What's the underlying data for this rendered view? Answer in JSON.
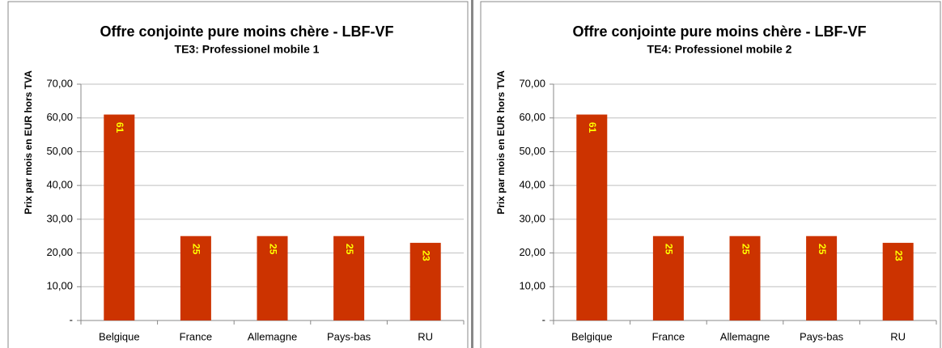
{
  "chart_data": [
    {
      "type": "bar",
      "title": "Offre conjointe pure moins chère - LBF-VF",
      "subtitle": "TE3: Professionel mobile 1",
      "y_label": "Prix par mois en EUR hors TVA",
      "categories": [
        "Belgique",
        "France",
        "Allemagne",
        "Pays-bas",
        "RU"
      ],
      "values": [
        61,
        25,
        25,
        25,
        23
      ],
      "color": "#cc3300",
      "ylim": [
        0,
        70
      ],
      "yticks": [
        {
          "value": 0,
          "label": "-"
        },
        {
          "value": 10,
          "label": "10,00"
        },
        {
          "value": 20,
          "label": "20,00"
        },
        {
          "value": 30,
          "label": "30,00"
        },
        {
          "value": 40,
          "label": "40,00"
        },
        {
          "value": 50,
          "label": "50,00"
        },
        {
          "value": 60,
          "label": "60,00"
        },
        {
          "value": 70,
          "label": "70,00"
        }
      ],
      "grid": true
    },
    {
      "type": "bar",
      "title": "Offre conjointe pure moins chère - LBF-VF",
      "subtitle": "TE4: Professionel mobile 2",
      "y_label": "Prix par mois en EUR hors TVA",
      "categories": [
        "Belgique",
        "France",
        "Allemagne",
        "Pays-bas",
        "RU"
      ],
      "values": [
        61,
        25,
        25,
        25,
        23
      ],
      "color": "#cc3300",
      "ylim": [
        0,
        70
      ],
      "yticks": [
        {
          "value": 0,
          "label": "-"
        },
        {
          "value": 10,
          "label": "10,00"
        },
        {
          "value": 20,
          "label": "20,00"
        },
        {
          "value": 30,
          "label": "30,00"
        },
        {
          "value": 40,
          "label": "40,00"
        },
        {
          "value": 50,
          "label": "50,00"
        },
        {
          "value": 60,
          "label": "60,00"
        },
        {
          "value": 70,
          "label": "70,00"
        }
      ],
      "grid": true
    }
  ]
}
